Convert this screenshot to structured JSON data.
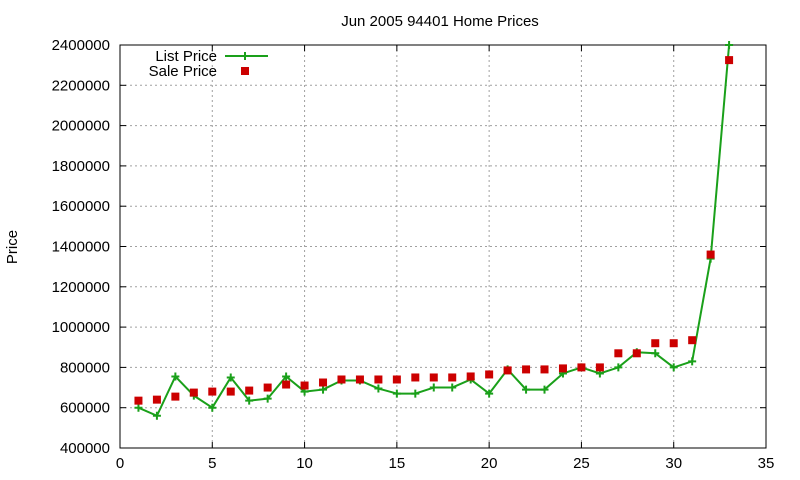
{
  "chart_data": {
    "type": "line",
    "title": "Jun 2005 94401 Home Prices",
    "xlabel": "",
    "ylabel": "Price",
    "xlim": [
      0,
      35
    ],
    "ylim": [
      400000,
      2400000
    ],
    "xticks": [
      0,
      5,
      10,
      15,
      20,
      25,
      30,
      35
    ],
    "yticks": [
      400000,
      600000,
      800000,
      1000000,
      1200000,
      1400000,
      1600000,
      1800000,
      2000000,
      2200000,
      2400000
    ],
    "grid": true,
    "legend_position": "top-left",
    "series": [
      {
        "name": "List Price",
        "style": "line+cross",
        "color": "#1aa01a",
        "x": [
          1,
          2,
          3,
          4,
          5,
          6,
          7,
          8,
          9,
          10,
          11,
          12,
          13,
          14,
          15,
          16,
          17,
          18,
          19,
          20,
          21,
          22,
          23,
          24,
          25,
          26,
          27,
          28,
          29,
          30,
          31,
          32,
          33
        ],
        "y": [
          600000,
          560000,
          755000,
          660000,
          600000,
          750000,
          635000,
          645000,
          755000,
          680000,
          690000,
          735000,
          735000,
          695000,
          670000,
          670000,
          700000,
          700000,
          740000,
          670000,
          790000,
          690000,
          690000,
          770000,
          800000,
          770000,
          800000,
          875000,
          870000,
          800000,
          830000,
          1340000,
          2400000
        ]
      },
      {
        "name": "Sale Price",
        "style": "square",
        "color": "#cc0000",
        "x": [
          1,
          2,
          3,
          4,
          5,
          6,
          7,
          8,
          9,
          10,
          11,
          12,
          13,
          14,
          15,
          16,
          17,
          18,
          19,
          20,
          21,
          22,
          23,
          24,
          25,
          26,
          27,
          28,
          29,
          30,
          31,
          32,
          33
        ],
        "y": [
          635000,
          640000,
          655000,
          675000,
          680000,
          680000,
          685000,
          700000,
          715000,
          710000,
          725000,
          740000,
          740000,
          740000,
          740000,
          750000,
          750000,
          750000,
          755000,
          765000,
          785000,
          790000,
          790000,
          795000,
          800000,
          800000,
          870000,
          870000,
          920000,
          920000,
          935000,
          1360000,
          2325000
        ]
      }
    ]
  }
}
